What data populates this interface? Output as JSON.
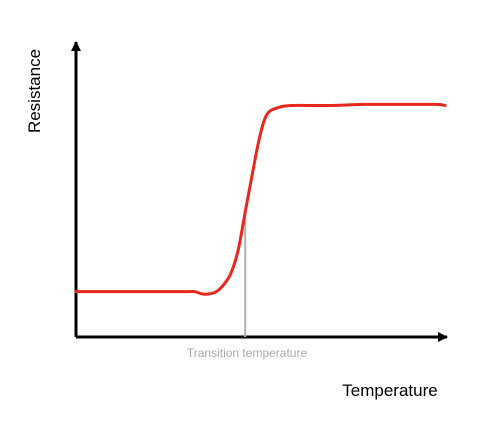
{
  "chart_data": {
    "type": "line",
    "title": "",
    "xlabel": "Temperature",
    "ylabel": "Resistance",
    "tick_labels_shown": false,
    "grid": false,
    "legend": "none",
    "series": [
      {
        "color": "#e8281c",
        "x": [
          0,
          0.2,
          0.4,
          0.6,
          0.66,
          0.7,
          0.74,
          0.78,
          0.82,
          0.86,
          0.9,
          0.94,
          0.98,
          1.02,
          1.06,
          1.12,
          1.2,
          1.4,
          1.6,
          1.8,
          2.0,
          2.05
        ],
        "y": [
          0.1,
          0.1,
          0.1,
          0.1,
          0.1,
          0.09,
          0.09,
          0.1,
          0.13,
          0.18,
          0.28,
          0.45,
          0.62,
          0.78,
          0.88,
          0.91,
          0.92,
          0.92,
          0.925,
          0.925,
          0.925,
          0.92
        ]
      }
    ],
    "annotations": [
      {
        "text": "Transition temperature",
        "x": 0.94,
        "color": "#aaaaaa",
        "line_color": "#b0b0b0"
      }
    ],
    "xlim": [
      0,
      2.2
    ],
    "ylim": [
      -0.1,
      1.2
    ]
  }
}
